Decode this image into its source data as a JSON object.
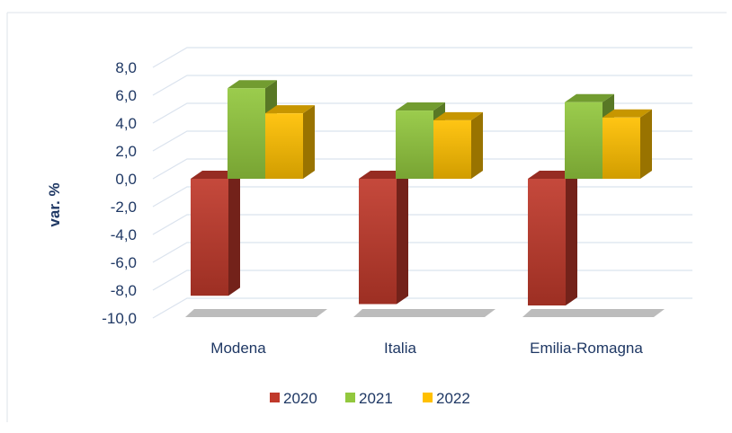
{
  "chart_data": {
    "type": "bar",
    "ylabel": "var. %",
    "categories": [
      "Modena",
      "Italia",
      "Emilia-Romagna"
    ],
    "series": [
      {
        "name": "2020",
        "values": [
          -8.4,
          -9.0,
          -9.1
        ],
        "color": "#c0392b"
      },
      {
        "name": "2021",
        "values": [
          6.5,
          4.9,
          5.5
        ],
        "color": "#92c83e"
      },
      {
        "name": "2022",
        "values": [
          4.7,
          4.2,
          4.4
        ],
        "color": "#ffc000"
      }
    ],
    "ylim": [
      -10,
      8
    ],
    "yticks": [
      "8,0",
      "6,0",
      "4,0",
      "2,0",
      "0,0",
      "-2,0",
      "-4,0",
      "-6,0",
      "-8,0",
      "-10,0"
    ],
    "grid": true,
    "legend_position": "bottom"
  }
}
